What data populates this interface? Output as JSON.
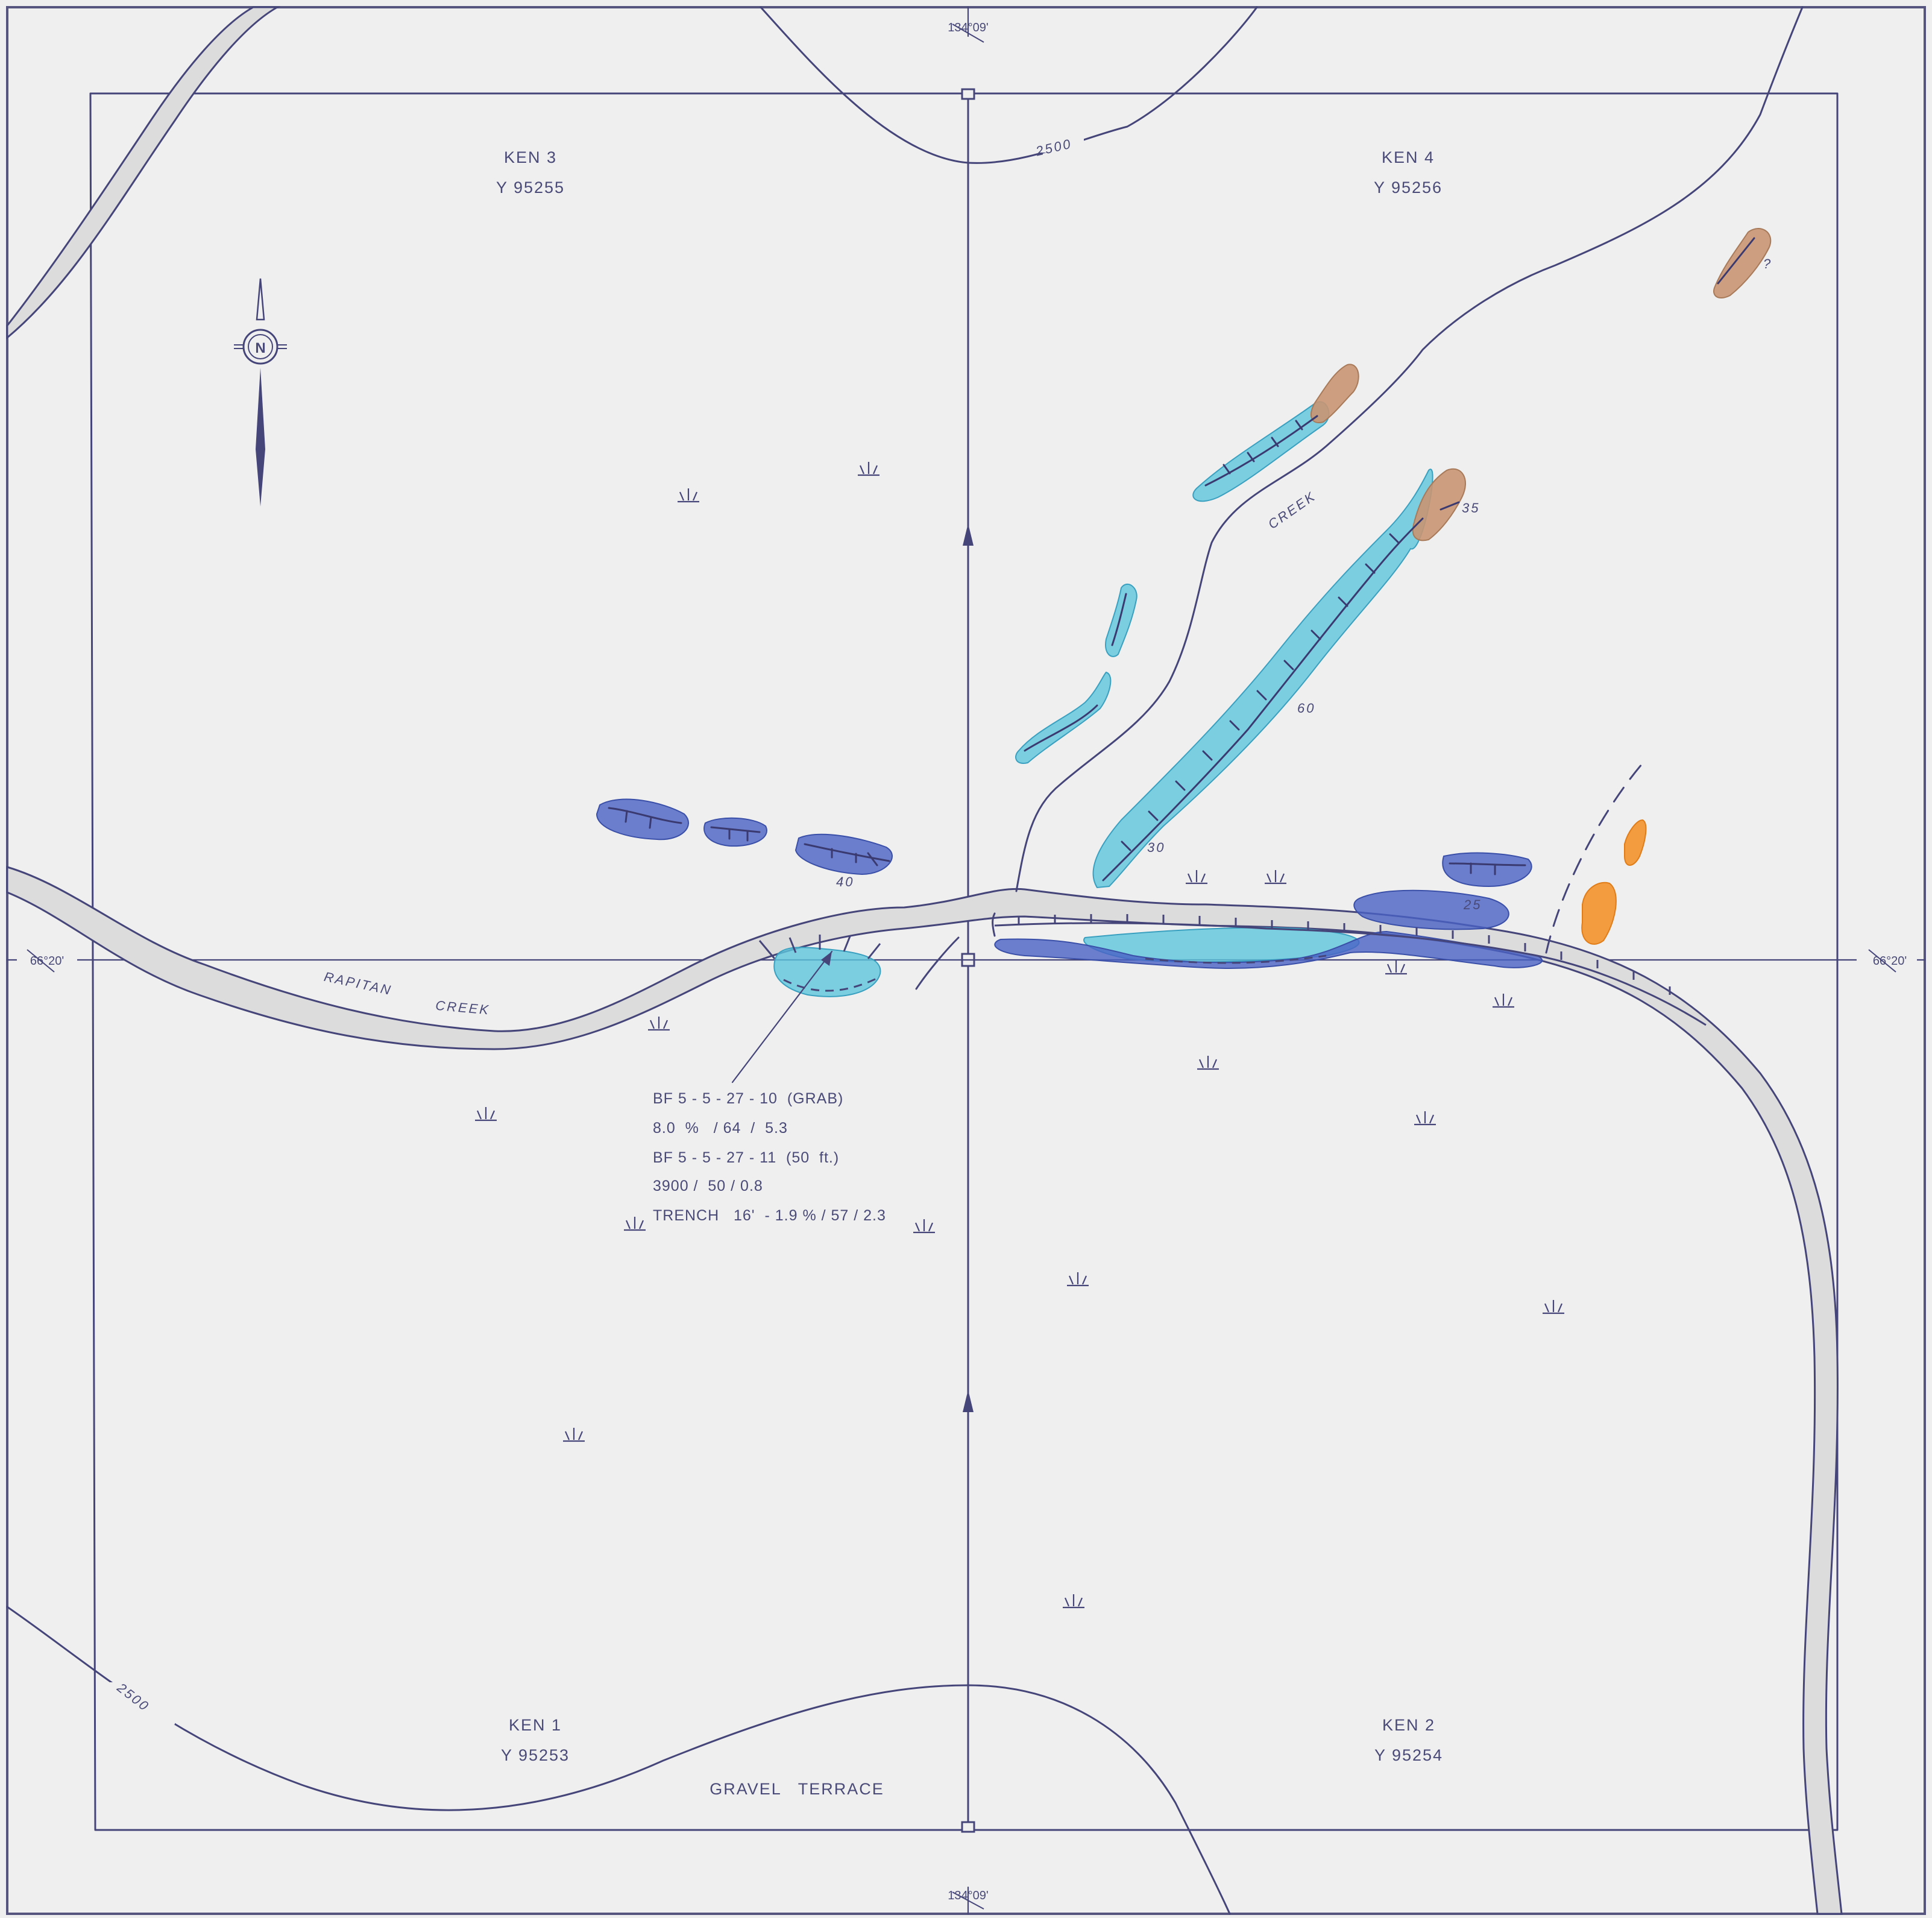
{
  "map": {
    "claims": [
      {
        "name": "KEN 3",
        "id": "Y 95255"
      },
      {
        "name": "KEN 4",
        "id": "Y 95256"
      },
      {
        "name": "KEN 1",
        "id": "Y 95253"
      },
      {
        "name": "KEN 2",
        "id": "Y 95254"
      }
    ],
    "coordinates": {
      "longitude": "134°09'",
      "latitude": "66°20'"
    },
    "contours": {
      "upper": "2500",
      "lower": "2500"
    },
    "features": {
      "creek_main_word1": "RAPITAN",
      "creek_main_word2": "CREEK",
      "creek_trib": "CREEK",
      "gravel_terrace": "GRAVEL   TERRACE"
    },
    "dips": [
      "35",
      "60",
      "30",
      "40",
      "25",
      "?"
    ],
    "sample_notes": [
      "BF 5 - 5 - 27 - 10  (GRAB)",
      "8.0  %   / 64  /  5.3",
      "BF 5 - 5 - 27 - 11  (50  ft.)",
      "3900 /  50 / 0.8",
      "TRENCH   16'  - 1.9 % / 57 / 2.3"
    ],
    "north_label": "N",
    "colors": {
      "linework": "#45457a",
      "paper": "#efefef",
      "river_fill": "#dcdcdc",
      "light_blue_unit": "#5ec6dc",
      "dark_blue_unit": "#4a62c4",
      "tan_unit": "#c99572",
      "orange_unit": "#f3922b"
    }
  }
}
